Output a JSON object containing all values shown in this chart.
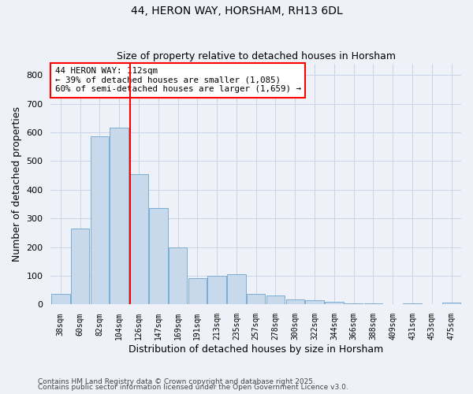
{
  "title1": "44, HERON WAY, HORSHAM, RH13 6DL",
  "title2": "Size of property relative to detached houses in Horsham",
  "xlabel": "Distribution of detached houses by size in Horsham",
  "ylabel": "Number of detached properties",
  "categories": [
    "38sqm",
    "60sqm",
    "82sqm",
    "104sqm",
    "126sqm",
    "147sqm",
    "169sqm",
    "191sqm",
    "213sqm",
    "235sqm",
    "257sqm",
    "278sqm",
    "300sqm",
    "322sqm",
    "344sqm",
    "366sqm",
    "388sqm",
    "409sqm",
    "431sqm",
    "453sqm",
    "475sqm"
  ],
  "values": [
    37,
    265,
    585,
    615,
    455,
    335,
    200,
    93,
    100,
    105,
    37,
    32,
    18,
    15,
    10,
    4,
    5,
    0,
    3,
    1,
    6
  ],
  "bar_color": "#c9d9ec",
  "bar_edge_color": "#7aadd4",
  "red_line_x": 3.57,
  "annotation_title": "44 HERON WAY: 112sqm",
  "annotation_line1": "← 39% of detached houses are smaller (1,085)",
  "annotation_line2": "60% of semi-detached houses are larger (1,659) →",
  "ylim": [
    0,
    840
  ],
  "yticks": [
    0,
    100,
    200,
    300,
    400,
    500,
    600,
    700,
    800
  ],
  "footnote1": "Contains HM Land Registry data © Crown copyright and database right 2025.",
  "footnote2": "Contains public sector information licensed under the Open Government Licence v3.0.",
  "bg_color": "#eef2f8",
  "plot_bg_color": "#eef2f8",
  "grid_color": "#c8d4e8"
}
